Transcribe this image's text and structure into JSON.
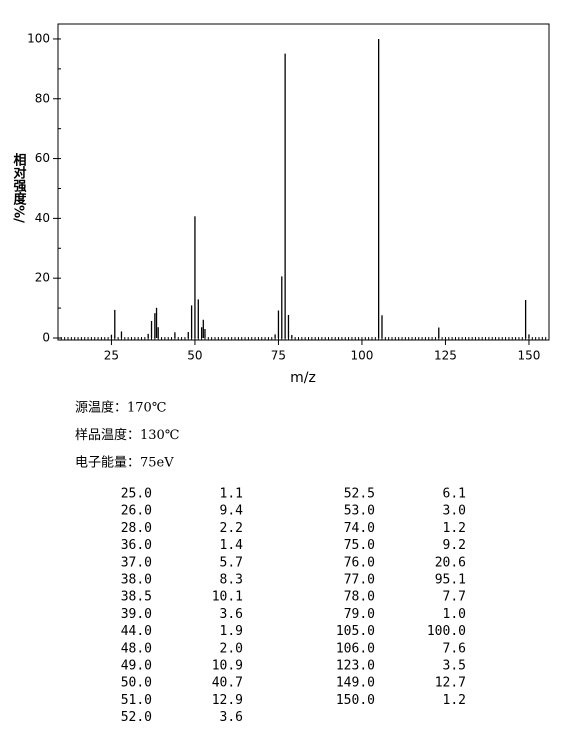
{
  "chart_data": {
    "type": "bar",
    "xlabel": "m/z",
    "ylabel": "相对强度%/",
    "x": [
      25,
      26,
      28,
      36,
      37,
      38,
      38.5,
      39,
      44,
      48,
      49,
      50,
      51,
      52,
      52.5,
      53,
      74,
      75,
      76,
      77,
      78,
      79,
      105,
      106,
      123,
      149,
      150
    ],
    "values": [
      1.1,
      9.4,
      2.2,
      1.4,
      5.7,
      8.3,
      10.1,
      3.6,
      1.9,
      2.0,
      10.9,
      40.7,
      12.9,
      3.6,
      6.1,
      3.0,
      1.2,
      9.2,
      20.6,
      95.1,
      7.7,
      1.0,
      100.0,
      7.6,
      3.5,
      12.7,
      1.2
    ],
    "color": "#000000",
    "xlim": [
      9,
      156
    ],
    "xticks": [
      25,
      50,
      75,
      100,
      125,
      150
    ],
    "ylim": [
      0,
      105
    ],
    "yticks": [
      0,
      20,
      40,
      60,
      80,
      100
    ]
  },
  "conditions": [
    "源温度：170℃",
    "样品温度：130℃",
    "电子能量：75eV"
  ],
  "table": {
    "rows": [
      [
        "25.0",
        "1.1"
      ],
      [
        "26.0",
        "9.4"
      ],
      [
        "28.0",
        "2.2"
      ],
      [
        "36.0",
        "1.4"
      ],
      [
        "37.0",
        "5.7"
      ],
      [
        "38.0",
        "8.3"
      ],
      [
        "38.5",
        "10.1"
      ],
      [
        "39.0",
        "3.6"
      ],
      [
        "44.0",
        "1.9"
      ],
      [
        "48.0",
        "2.0"
      ],
      [
        "49.0",
        "10.9"
      ],
      [
        "50.0",
        "40.7"
      ],
      [
        "51.0",
        "12.9"
      ],
      [
        "52.0",
        "3.6"
      ],
      [
        "52.5",
        "6.1"
      ],
      [
        "53.0",
        "3.0"
      ],
      [
        "74.0",
        "1.2"
      ],
      [
        "75.0",
        "9.2"
      ],
      [
        "76.0",
        "20.6"
      ],
      [
        "77.0",
        "95.1"
      ],
      [
        "78.0",
        "7.7"
      ],
      [
        "79.0",
        "1.0"
      ],
      [
        "105.0",
        "100.0"
      ],
      [
        "106.0",
        "7.6"
      ],
      [
        "123.0",
        "3.5"
      ],
      [
        "149.0",
        "12.7"
      ],
      [
        "150.0",
        "1.2"
      ]
    ]
  }
}
